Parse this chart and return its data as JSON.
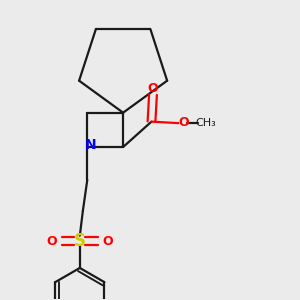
{
  "background_color": "#ebebeb",
  "bond_color": "#1a1a1a",
  "nitrogen_color": "#0000ff",
  "oxygen_color": "#ff0000",
  "sulfur_color": "#cccc00",
  "line_width": 1.6,
  "fig_width": 3.0,
  "fig_height": 3.0,
  "dpi": 100,
  "xlim": [
    0,
    1
  ],
  "ylim": [
    0,
    1
  ]
}
